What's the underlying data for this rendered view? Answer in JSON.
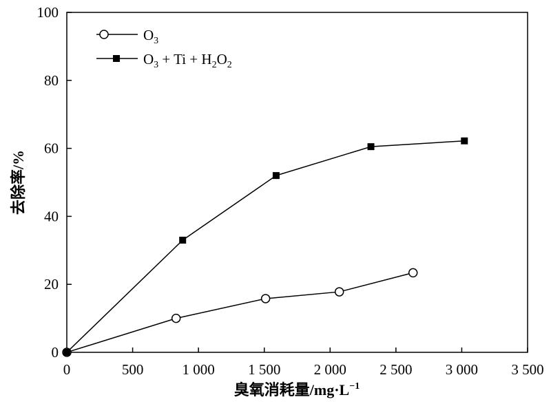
{
  "chart_data": {
    "type": "line",
    "xlabel": "臭氧消耗量/mg·L",
    "xlabel_sup": "−1",
    "ylabel": "去除率/%",
    "xlim": [
      0,
      3500
    ],
    "ylim": [
      0,
      100
    ],
    "xticks": [
      0,
      500,
      1000,
      1500,
      2000,
      2500,
      3000,
      3500
    ],
    "xtick_labels": [
      "0",
      "500",
      "1 000",
      "1 500",
      "2 000",
      "2 500",
      "3 000",
      "3 500"
    ],
    "yticks": [
      0,
      20,
      40,
      60,
      80,
      100
    ],
    "ytick_labels": [
      "0",
      "20",
      "40",
      "60",
      "80",
      "100"
    ],
    "grid": false,
    "legend_position": "top-left",
    "series": [
      {
        "name": "O3",
        "legend": {
          "base": "O",
          "sub": "3"
        },
        "marker": "open-circle",
        "color": "#000000",
        "x": [
          0,
          830,
          1510,
          2070,
          2630
        ],
        "y": [
          0,
          10,
          15.8,
          17.8,
          23.4
        ]
      },
      {
        "name": "O3 + Ti + H2O2",
        "legend": {
          "p1": "O",
          "s1": "3",
          "p2": " + Ti + H",
          "s2": "2",
          "p3": "O",
          "s3": "2"
        },
        "marker": "filled-square",
        "color": "#000000",
        "x": [
          0,
          880,
          1590,
          2310,
          3020
        ],
        "y": [
          0,
          33,
          52,
          60.5,
          62.2
        ]
      }
    ]
  }
}
